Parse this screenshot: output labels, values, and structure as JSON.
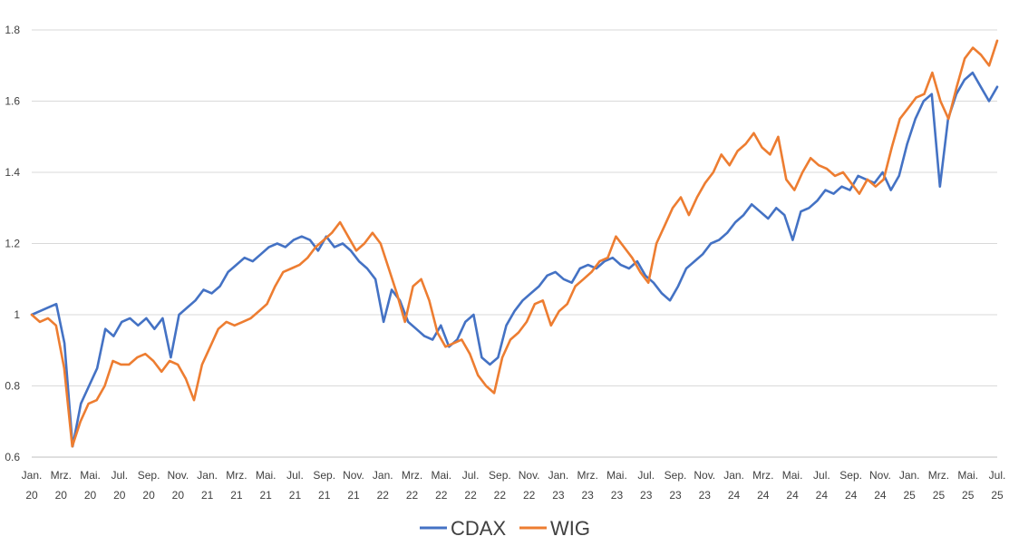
{
  "chart_data": {
    "type": "line",
    "title": "",
    "xlabel": "",
    "ylabel": "",
    "ylim": [
      0.6,
      1.8
    ],
    "y_ticks": [
      "0.6",
      "0.8",
      "1",
      "1.2",
      "1.4",
      "1.6",
      "1.8"
    ],
    "y_tick_values": [
      0.6,
      0.8,
      1.0,
      1.2,
      1.4,
      1.6,
      1.8
    ],
    "grid": "horizontal",
    "legend": "bottom",
    "x_ticks": [
      {
        "m": "Jan.",
        "y": "20"
      },
      {
        "m": "Mrz.",
        "y": "20"
      },
      {
        "m": "Mai.",
        "y": "20"
      },
      {
        "m": "Jul.",
        "y": "20"
      },
      {
        "m": "Sep.",
        "y": "20"
      },
      {
        "m": "Nov.",
        "y": "20"
      },
      {
        "m": "Jan.",
        "y": "21"
      },
      {
        "m": "Mrz.",
        "y": "21"
      },
      {
        "m": "Mai.",
        "y": "21"
      },
      {
        "m": "Jul.",
        "y": "21"
      },
      {
        "m": "Sep.",
        "y": "21"
      },
      {
        "m": "Nov.",
        "y": "21"
      },
      {
        "m": "Jan.",
        "y": "22"
      },
      {
        "m": "Mrz.",
        "y": "22"
      },
      {
        "m": "Mai.",
        "y": "22"
      },
      {
        "m": "Jul.",
        "y": "22"
      },
      {
        "m": "Sep.",
        "y": "22"
      },
      {
        "m": "Nov.",
        "y": "22"
      },
      {
        "m": "Jan.",
        "y": "23"
      },
      {
        "m": "Mrz.",
        "y": "23"
      },
      {
        "m": "Mai.",
        "y": "23"
      },
      {
        "m": "Jul.",
        "y": "23"
      },
      {
        "m": "Sep.",
        "y": "23"
      },
      {
        "m": "Nov.",
        "y": "23"
      },
      {
        "m": "Jan.",
        "y": "24"
      },
      {
        "m": "Mrz.",
        "y": "24"
      },
      {
        "m": "Mai.",
        "y": "24"
      },
      {
        "m": "Jul.",
        "y": "24"
      },
      {
        "m": "Sep.",
        "y": "24"
      },
      {
        "m": "Nov.",
        "y": "24"
      },
      {
        "m": "Jan.",
        "y": "25"
      },
      {
        "m": "Mrz.",
        "y": "25"
      },
      {
        "m": "Mai.",
        "y": "25"
      },
      {
        "m": "Jul.",
        "y": "25"
      }
    ],
    "series": [
      {
        "name": "CDAX",
        "color": "#4472C4",
        "values": [
          1.0,
          1.01,
          1.02,
          1.03,
          0.92,
          0.63,
          0.75,
          0.8,
          0.85,
          0.96,
          0.94,
          0.98,
          0.99,
          0.97,
          0.99,
          0.96,
          0.99,
          0.88,
          1.0,
          1.02,
          1.04,
          1.07,
          1.06,
          1.08,
          1.12,
          1.14,
          1.16,
          1.15,
          1.17,
          1.19,
          1.2,
          1.19,
          1.21,
          1.22,
          1.21,
          1.18,
          1.22,
          1.19,
          1.2,
          1.18,
          1.15,
          1.13,
          1.1,
          0.98,
          1.07,
          1.04,
          0.98,
          0.96,
          0.94,
          0.93,
          0.97,
          0.91,
          0.93,
          0.98,
          1.0,
          0.88,
          0.86,
          0.88,
          0.97,
          1.01,
          1.04,
          1.06,
          1.08,
          1.11,
          1.12,
          1.1,
          1.09,
          1.13,
          1.14,
          1.13,
          1.15,
          1.16,
          1.14,
          1.13,
          1.15,
          1.11,
          1.09,
          1.06,
          1.04,
          1.08,
          1.13,
          1.15,
          1.17,
          1.2,
          1.21,
          1.23,
          1.26,
          1.28,
          1.31,
          1.29,
          1.27,
          1.3,
          1.28,
          1.21,
          1.29,
          1.3,
          1.32,
          1.35,
          1.34,
          1.36,
          1.35,
          1.39,
          1.38,
          1.37,
          1.4,
          1.35,
          1.39,
          1.48,
          1.55,
          1.6,
          1.62,
          1.36,
          1.55,
          1.62,
          1.66,
          1.68,
          1.64,
          1.6,
          1.64
        ]
      },
      {
        "name": "WIG",
        "color": "#ED7D31",
        "values": [
          1.0,
          0.98,
          0.99,
          0.97,
          0.85,
          0.63,
          0.7,
          0.75,
          0.76,
          0.8,
          0.87,
          0.86,
          0.86,
          0.88,
          0.89,
          0.87,
          0.84,
          0.87,
          0.86,
          0.82,
          0.76,
          0.86,
          0.91,
          0.96,
          0.98,
          0.97,
          0.98,
          0.99,
          1.01,
          1.03,
          1.08,
          1.12,
          1.13,
          1.14,
          1.16,
          1.19,
          1.21,
          1.23,
          1.26,
          1.22,
          1.18,
          1.2,
          1.23,
          1.2,
          1.13,
          1.06,
          0.98,
          1.08,
          1.1,
          1.04,
          0.95,
          0.91,
          0.92,
          0.93,
          0.89,
          0.83,
          0.8,
          0.78,
          0.88,
          0.93,
          0.95,
          0.98,
          1.03,
          1.04,
          0.97,
          1.01,
          1.03,
          1.08,
          1.1,
          1.12,
          1.15,
          1.16,
          1.22,
          1.19,
          1.16,
          1.12,
          1.09,
          1.2,
          1.25,
          1.3,
          1.33,
          1.28,
          1.33,
          1.37,
          1.4,
          1.45,
          1.42,
          1.46,
          1.48,
          1.51,
          1.47,
          1.45,
          1.5,
          1.38,
          1.35,
          1.4,
          1.44,
          1.42,
          1.41,
          1.39,
          1.4,
          1.37,
          1.34,
          1.38,
          1.36,
          1.38,
          1.47,
          1.55,
          1.58,
          1.61,
          1.62,
          1.68,
          1.6,
          1.55,
          1.64,
          1.72,
          1.75,
          1.73,
          1.7,
          1.77
        ]
      }
    ]
  }
}
